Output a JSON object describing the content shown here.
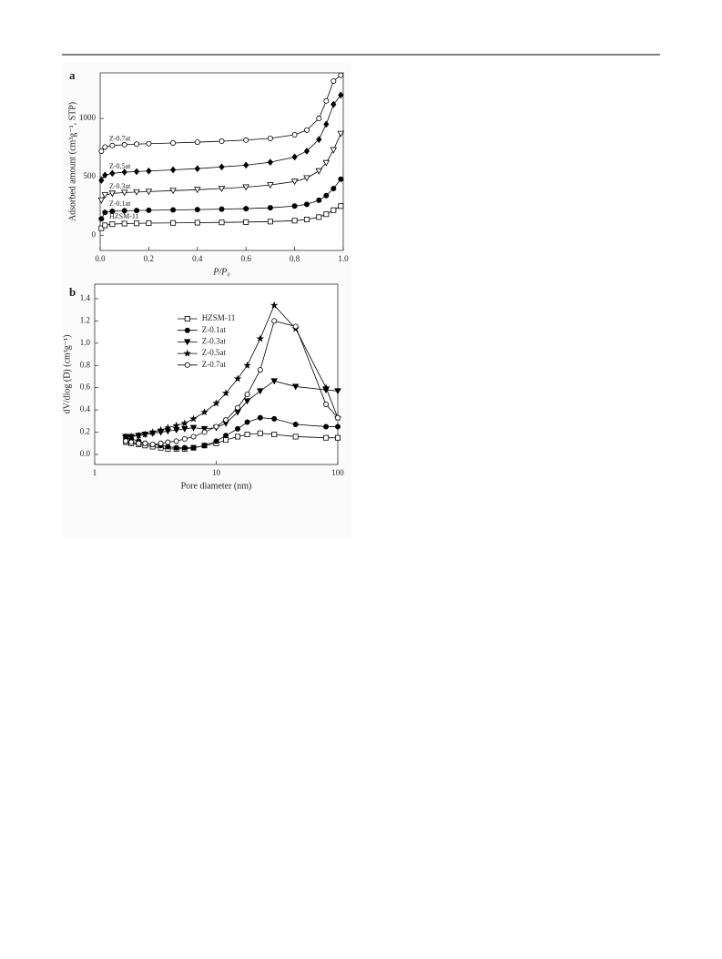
{
  "chart_data": [
    {
      "type": "line",
      "panel_label": "a",
      "x_label": "P/P₀",
      "y_label": "Adsorbed amount (cm³g⁻¹, STP)",
      "x": [
        0.005,
        0.02,
        0.05,
        0.1,
        0.15,
        0.2,
        0.3,
        0.4,
        0.5,
        0.6,
        0.7,
        0.8,
        0.85,
        0.9,
        0.93,
        0.96,
        0.99
      ],
      "xlim": [
        0,
        1.0
      ],
      "ylim": [
        -130,
        1390
      ],
      "xticks": [
        {
          "value": 0,
          "label": "0.0"
        },
        {
          "value": 0.2,
          "label": "0.2"
        },
        {
          "value": 0.4,
          "label": "0.4"
        },
        {
          "value": 0.6,
          "label": "0.6"
        },
        {
          "value": 0.8,
          "label": "0.8"
        },
        {
          "value": 1,
          "label": "1.0"
        }
      ],
      "yticks": [
        0,
        500,
        1000
      ],
      "legend": "inline",
      "series": [
        {
          "name": "HZSM-11",
          "color": "#000000",
          "marker": "square-open",
          "values": [
            60,
            85,
            95,
            100,
            102,
            104,
            106,
            108,
            110,
            113,
            117,
            125,
            135,
            155,
            180,
            215,
            250
          ]
        },
        {
          "name": "Z-0.1at",
          "color": "#000000",
          "marker": "circle-filled",
          "values": [
            140,
            195,
            205,
            210,
            212,
            214,
            217,
            220,
            224,
            228,
            235,
            250,
            265,
            300,
            340,
            400,
            480
          ]
        },
        {
          "name": "Z-0.3at",
          "color": "#000000",
          "marker": "triangle-open",
          "values": [
            300,
            345,
            358,
            365,
            370,
            374,
            382,
            390,
            400,
            412,
            430,
            460,
            490,
            550,
            620,
            730,
            870
          ]
        },
        {
          "name": "Z-0.5at",
          "color": "#000000",
          "marker": "diamond-filled",
          "values": [
            470,
            515,
            530,
            540,
            545,
            550,
            560,
            570,
            585,
            600,
            625,
            670,
            720,
            820,
            950,
            1120,
            1200
          ]
        },
        {
          "name": "Z-0.7at",
          "color": "#000000",
          "marker": "circle-open",
          "values": [
            720,
            755,
            768,
            775,
            780,
            784,
            790,
            797,
            805,
            815,
            830,
            860,
            900,
            1000,
            1150,
            1320,
            1370
          ]
        }
      ]
    },
    {
      "type": "line",
      "panel_label": "b",
      "x_label": "Pore diameter (nm)",
      "y_label": "dV/dlog (D) (cm³g⁻¹)",
      "x": [
        1.8,
        2,
        2.3,
        2.6,
        3,
        3.5,
        4,
        4.7,
        5.5,
        6.5,
        8,
        10,
        12,
        15,
        18,
        23,
        30,
        45,
        80,
        100
      ],
      "xscale": "log",
      "xlim": [
        1,
        100
      ],
      "ylim": [
        -0.09,
        1.53
      ],
      "xticks": [
        1,
        10,
        100
      ],
      "yticks": [
        {
          "value": 0,
          "label": "0.0"
        },
        {
          "value": 0.2,
          "label": "0.2"
        },
        {
          "value": 0.4,
          "label": "0.4"
        },
        {
          "value": 0.6,
          "label": "0.6"
        },
        {
          "value": 0.8,
          "label": "0.8"
        },
        {
          "value": 1,
          "label": "1.0"
        },
        {
          "value": 1.2,
          "label": "1.2"
        },
        {
          "value": 1.4,
          "label": "1.4"
        }
      ],
      "legend": "upper-center",
      "series": [
        {
          "name": "HZSM-11",
          "color": "#000000",
          "marker": "square-open",
          "values": [
            0.11,
            0.1,
            0.09,
            0.08,
            0.07,
            0.06,
            0.05,
            0.05,
            0.05,
            0.06,
            0.08,
            0.1,
            0.13,
            0.16,
            0.18,
            0.19,
            0.18,
            0.16,
            0.15,
            0.15
          ]
        },
        {
          "name": "Z-0.1at",
          "color": "#000000",
          "marker": "circle-filled",
          "values": [
            0.15,
            0.14,
            0.12,
            0.1,
            0.09,
            0.08,
            0.07,
            0.06,
            0.06,
            0.06,
            0.08,
            0.12,
            0.17,
            0.23,
            0.29,
            0.33,
            0.32,
            0.27,
            0.25,
            0.25
          ]
        },
        {
          "name": "Z-0.3at",
          "color": "#000000",
          "marker": "triangle-filled",
          "values": [
            0.16,
            0.16,
            0.17,
            0.18,
            0.19,
            0.2,
            0.21,
            0.22,
            0.23,
            0.24,
            0.23,
            0.24,
            0.28,
            0.38,
            0.48,
            0.57,
            0.66,
            0.61,
            0.58,
            0.57
          ]
        },
        {
          "name": "Z-0.5at",
          "color": "#000000",
          "marker": "star-filled",
          "values": [
            0.16,
            0.16,
            0.17,
            0.18,
            0.2,
            0.22,
            0.24,
            0.26,
            0.28,
            0.32,
            0.38,
            0.46,
            0.55,
            0.68,
            0.8,
            1.04,
            1.34,
            1.13,
            0.6,
            0.33
          ]
        },
        {
          "name": "Z-0.7at",
          "color": "#000000",
          "marker": "circle-open",
          "values": [
            0.12,
            0.11,
            0.1,
            0.1,
            0.09,
            0.1,
            0.11,
            0.12,
            0.14,
            0.16,
            0.2,
            0.25,
            0.31,
            0.42,
            0.54,
            0.76,
            1.2,
            1.15,
            0.45,
            0.33
          ]
        }
      ]
    }
  ]
}
